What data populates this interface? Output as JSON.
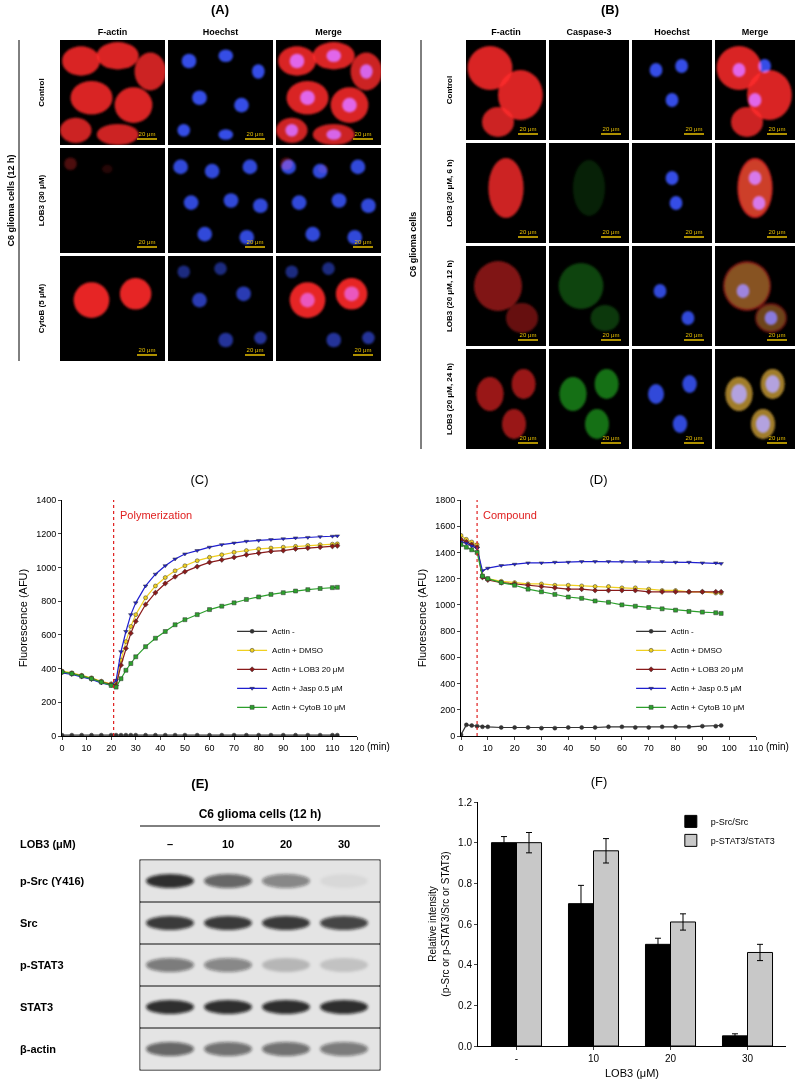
{
  "panels": {
    "A": {
      "label": "(A)",
      "side_label": "C6 glioma cells (12 h)",
      "columns": [
        "F-actin",
        "Hoechst",
        "Merge"
      ],
      "rows": [
        "Control",
        "LOB3 (30 μM)",
        "CytoB (5 μM)"
      ],
      "scale_bar": "20 μm"
    },
    "B": {
      "label": "(B)",
      "side_label": "C6 glioma cells",
      "columns": [
        "F-actin",
        "Caspase-3",
        "Hoechst",
        "Merge"
      ],
      "rows": [
        "Control",
        "LOB3 (20 μM, 6 h)",
        "LOB3 (20 μM, 12 h)",
        "LOB3 (20 μM, 24 h)"
      ],
      "scale_bar": "20 μm"
    },
    "E": {
      "label": "(E)",
      "title": "C6 glioma cells (12 h)",
      "treatment": "LOB3 (μM)",
      "lanes": [
        "–",
        "10",
        "20",
        "30"
      ],
      "rows": [
        {
          "name": "p-Src (Y416)",
          "band_intensity": [
            0.85,
            0.6,
            0.45,
            0.05
          ]
        },
        {
          "name": "Src",
          "band_intensity": [
            0.8,
            0.8,
            0.8,
            0.75
          ]
        },
        {
          "name": "p-STAT3",
          "band_intensity": [
            0.5,
            0.45,
            0.2,
            0.15
          ]
        },
        {
          "name": "STAT3",
          "band_intensity": [
            0.85,
            0.85,
            0.85,
            0.85
          ]
        },
        {
          "name": "β-actin",
          "band_intensity": [
            0.6,
            0.55,
            0.55,
            0.5
          ]
        }
      ]
    }
  },
  "chart_data": [
    {
      "type": "line",
      "title": "(C)",
      "x_label": "(min)",
      "y_label": "Fluorescence (AFU)",
      "x": [
        0,
        4,
        8,
        12,
        16,
        20,
        22,
        24,
        26,
        28,
        30,
        34,
        38,
        42,
        46,
        50,
        55,
        60,
        65,
        70,
        75,
        80,
        85,
        90,
        95,
        100,
        105,
        110,
        112
      ],
      "series": [
        {
          "name": "Actin -",
          "color": "#333333",
          "marker": "circle",
          "line_style": "solid",
          "values": [
            5,
            5,
            5,
            5,
            5,
            5,
            5,
            5,
            5,
            5,
            5,
            5,
            5,
            5,
            5,
            5,
            5,
            5,
            5,
            5,
            5,
            5,
            5,
            5,
            5,
            5,
            5,
            5,
            5
          ]
        },
        {
          "name": "Actin + DMSO",
          "color": "#f0d020",
          "marker": "circle",
          "line_style": "solid",
          "values": [
            385,
            375,
            360,
            345,
            325,
            310,
            310,
            450,
            560,
            650,
            720,
            820,
            890,
            940,
            980,
            1010,
            1040,
            1060,
            1075,
            1090,
            1100,
            1110,
            1115,
            1120,
            1125,
            1130,
            1135,
            1138,
            1140
          ]
        },
        {
          "name": "Actin + LOB3 20 μM",
          "color": "#8b1a1a",
          "marker": "diamond",
          "line_style": "solid",
          "values": [
            380,
            370,
            355,
            340,
            320,
            305,
            300,
            420,
            520,
            610,
            680,
            780,
            850,
            905,
            945,
            975,
            1005,
            1030,
            1045,
            1060,
            1075,
            1085,
            1095,
            1100,
            1110,
            1115,
            1120,
            1125,
            1128
          ]
        },
        {
          "name": "Actin + Jasp 0.5 μM",
          "color": "#1f1fd0",
          "marker": "triangle-down",
          "line_style": "solid",
          "values": [
            375,
            365,
            350,
            335,
            315,
            300,
            330,
            500,
            620,
            720,
            790,
            890,
            960,
            1010,
            1050,
            1080,
            1100,
            1120,
            1135,
            1145,
            1155,
            1160,
            1165,
            1170,
            1175,
            1178,
            1182,
            1185,
            1187
          ]
        },
        {
          "name": "Actin + CytoB 10 μM",
          "color": "#2ca02c",
          "marker": "square",
          "line_style": "solid",
          "values": [
            380,
            370,
            355,
            340,
            320,
            300,
            290,
            340,
            390,
            430,
            470,
            530,
            580,
            620,
            660,
            690,
            720,
            750,
            770,
            790,
            810,
            825,
            840,
            850,
            860,
            868,
            875,
            880,
            882
          ]
        }
      ],
      "xlim": [
        0,
        120
      ],
      "xticks": [
        0,
        10,
        20,
        30,
        40,
        50,
        60,
        70,
        80,
        90,
        100,
        110,
        120
      ],
      "ylim": [
        0,
        1400
      ],
      "yticks": [
        0,
        200,
        400,
        600,
        800,
        1000,
        1200,
        1400
      ],
      "annotations": [
        {
          "text": "Polymerization",
          "x": 21
        }
      ],
      "legend": "lower right",
      "grid": false
    },
    {
      "type": "line",
      "title": "(D)",
      "x_label": "(min)",
      "y_label": "Fluorescence (AFU)",
      "x": [
        0,
        2,
        4,
        6,
        8,
        10,
        15,
        20,
        25,
        30,
        35,
        40,
        45,
        50,
        55,
        60,
        65,
        70,
        75,
        80,
        85,
        90,
        95,
        97
      ],
      "series": [
        {
          "name": "Actin -",
          "color": "#333333",
          "marker": "circle",
          "line_style": "solid",
          "values": [
            10,
            85,
            80,
            75,
            70,
            70,
            65,
            65,
            65,
            60,
            60,
            65,
            65,
            65,
            70,
            70,
            65,
            65,
            70,
            70,
            70,
            75,
            75,
            80
          ]
        },
        {
          "name": "Actin + DMSO",
          "color": "#f0d020",
          "marker": "circle",
          "line_style": "solid",
          "values": [
            1530,
            1500,
            1480,
            1460,
            1220,
            1200,
            1180,
            1170,
            1160,
            1160,
            1150,
            1150,
            1145,
            1140,
            1140,
            1130,
            1130,
            1120,
            1110,
            1110,
            1100,
            1100,
            1090,
            1090
          ]
        },
        {
          "name": "Actin + LOB3 20 μM",
          "color": "#8b1a1a",
          "marker": "diamond",
          "line_style": "solid",
          "values": [
            1500,
            1480,
            1460,
            1440,
            1210,
            1190,
            1170,
            1160,
            1150,
            1140,
            1130,
            1120,
            1120,
            1110,
            1110,
            1110,
            1110,
            1100,
            1100,
            1100,
            1100,
            1100,
            1100,
            1100
          ]
        },
        {
          "name": "Actin + Jasp 0.5 μM",
          "color": "#1f1fd0",
          "marker": "triangle-down",
          "line_style": "solid",
          "values": [
            1480,
            1470,
            1450,
            1430,
            1260,
            1280,
            1300,
            1310,
            1320,
            1320,
            1325,
            1325,
            1330,
            1330,
            1330,
            1330,
            1330,
            1330,
            1330,
            1325,
            1325,
            1320,
            1320,
            1315
          ]
        },
        {
          "name": "Actin + CytoB 10 μM",
          "color": "#2ca02c",
          "marker": "square",
          "line_style": "solid",
          "values": [
            1460,
            1440,
            1420,
            1400,
            1220,
            1200,
            1170,
            1150,
            1120,
            1100,
            1080,
            1060,
            1050,
            1030,
            1020,
            1000,
            990,
            980,
            970,
            960,
            950,
            945,
            940,
            935
          ]
        }
      ],
      "xlim": [
        0,
        110
      ],
      "xticks": [
        0,
        10,
        20,
        30,
        40,
        50,
        60,
        70,
        80,
        90,
        100,
        110
      ],
      "ylim": [
        0,
        1800
      ],
      "yticks": [
        0,
        200,
        400,
        600,
        800,
        1000,
        1200,
        1400,
        1600,
        1800
      ],
      "annotations": [
        {
          "text": "Compound",
          "x": 6
        }
      ],
      "legend": "lower right",
      "grid": false
    },
    {
      "type": "bar",
      "title": "(F)",
      "x_label": "LOB3 (μM)",
      "y_label": "Relative intensity\n(p-Src or p-STAT3/Src or STAT3)",
      "categories": [
        "-",
        "10",
        "20",
        "30"
      ],
      "series": [
        {
          "name": "p-Src/Src",
          "color": "#000000",
          "values": [
            1.0,
            0.7,
            0.5,
            0.05
          ],
          "errors": [
            0.03,
            0.09,
            0.03,
            0.01
          ]
        },
        {
          "name": "p-STAT3/STAT3",
          "color": "#c8c8c8",
          "values": [
            1.0,
            0.96,
            0.61,
            0.46
          ],
          "errors": [
            0.05,
            0.06,
            0.04,
            0.04
          ]
        }
      ],
      "ylim": [
        0,
        1.2
      ],
      "yticks": [
        {
          "value": 0,
          "label": "0.0"
        },
        0.2,
        0.4,
        0.6,
        0.8,
        {
          "value": 1,
          "label": "1.0"
        },
        1.2
      ],
      "legend": "upper right",
      "grid": false
    }
  ]
}
